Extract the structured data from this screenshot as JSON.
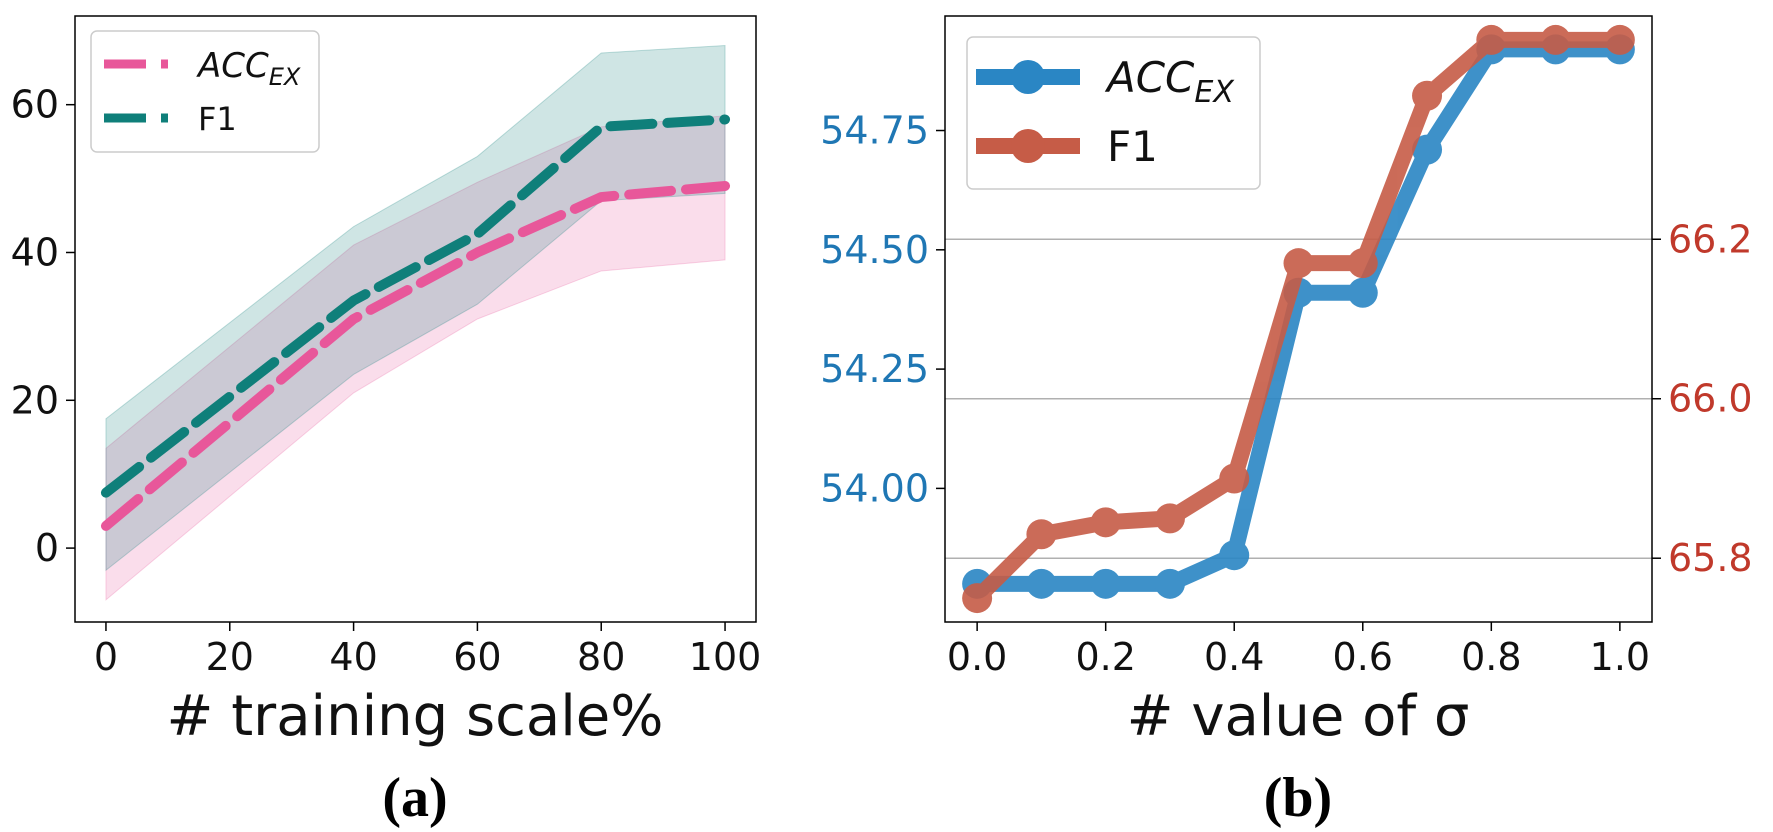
{
  "panel_labels": [
    "(a)",
    "(b)"
  ],
  "chart_data": [
    {
      "type": "line",
      "xlabel": "# training scale%",
      "x": [
        0,
        40,
        60,
        80,
        100
      ],
      "xlim": [
        -5,
        105
      ],
      "ylim": [
        -10,
        72
      ],
      "xticks": [
        0,
        20,
        40,
        60,
        80,
        100
      ],
      "yticks": [
        0,
        20,
        40,
        60
      ],
      "series": [
        {
          "name": "ACC",
          "name_sub": "EX",
          "color": "#e8579a",
          "style": "dashed",
          "values": [
            3,
            31,
            40,
            47.5,
            49
          ],
          "band_lower": [
            -7,
            21,
            31,
            37.5,
            39
          ],
          "band_upper": [
            13.5,
            41,
            49.5,
            57,
            58.5
          ]
        },
        {
          "name": "F1",
          "color": "#0f7f7a",
          "style": "dashed",
          "values": [
            7.5,
            33.5,
            42.5,
            57,
            58
          ],
          "band_lower": [
            -3,
            23.5,
            33,
            47,
            48
          ],
          "band_upper": [
            17.5,
            43.5,
            53,
            67,
            68
          ]
        }
      ],
      "legend": "top-left",
      "grid": false
    },
    {
      "type": "line",
      "xlabel": "# value of σ",
      "x": [
        0.0,
        0.1,
        0.2,
        0.3,
        0.4,
        0.5,
        0.6,
        0.7,
        0.8,
        0.9,
        1.0
      ],
      "xlim": [
        -0.05,
        1.05
      ],
      "xticks": [
        "0.0",
        "0.2",
        "0.4",
        "0.6",
        "0.8",
        "1.0"
      ],
      "y_left": {
        "ticks": [
          "54.00",
          "54.25",
          "54.50",
          "54.75"
        ],
        "lim": [
          53.72,
          54.99
        ],
        "color": "#1f77b4"
      },
      "y_right": {
        "ticks": [
          "65.8",
          "66.0",
          "66.2"
        ],
        "lim": [
          65.72,
          66.48
        ],
        "color": "#c0392b"
      },
      "series": [
        {
          "name": "ACC",
          "name_sub": "EX",
          "axis": "left",
          "color": "#2a86c4",
          "values": [
            53.8,
            53.8,
            53.8,
            53.8,
            53.86,
            54.41,
            54.41,
            54.71,
            54.92,
            54.92,
            54.92
          ]
        },
        {
          "name": "F1",
          "axis": "right",
          "color": "#c65c47",
          "values": [
            65.75,
            65.83,
            65.845,
            65.85,
            65.9,
            66.17,
            66.17,
            66.38,
            66.45,
            66.45,
            66.45
          ]
        }
      ],
      "legend": "top-left",
      "grid": "right-axis horizontal"
    }
  ]
}
